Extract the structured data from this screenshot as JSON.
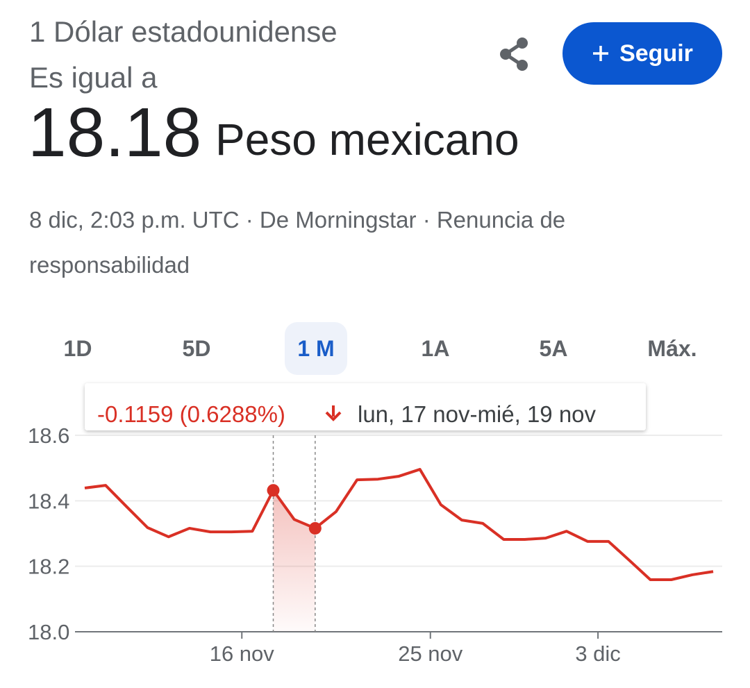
{
  "header": {
    "title": "1 Dólar estadounidense",
    "subtitle": "Es igual a",
    "value": "18.18",
    "currency": "Peso mexicano"
  },
  "follow_button": "Seguir",
  "meta": "8 dic, 2:03 p.m. UTC · De Morningstar · Renuncia de responsabilidad",
  "tabs": {
    "items": [
      "1D",
      "5D",
      "1 M",
      "1A",
      "5A",
      "Máx."
    ],
    "selected": 2
  },
  "chart_data": {
    "type": "line",
    "tooltip": {
      "change": "-0.1159 (0.6288%)",
      "range": "lun, 17 nov-mié, 19 nov"
    },
    "x": [
      0,
      1,
      2,
      3,
      4,
      5,
      6,
      7,
      8,
      9,
      10,
      11,
      12,
      13,
      14,
      15,
      16,
      17,
      18,
      19,
      20,
      21,
      22,
      23,
      24,
      25,
      26,
      27,
      28,
      29,
      30
    ],
    "xlim": [
      0,
      30
    ],
    "xticks": [
      {
        "value": 7.5,
        "label": "16 nov"
      },
      {
        "value": 16.5,
        "label": "25 nov"
      },
      {
        "value": 24.5,
        "label": "3 dic"
      }
    ],
    "series": [
      {
        "color": "#d93025",
        "values": [
          18.439,
          18.447,
          18.382,
          18.318,
          18.29,
          18.316,
          18.305,
          18.305,
          18.307,
          18.432,
          18.343,
          18.316,
          18.367,
          18.464,
          18.466,
          18.475,
          18.496,
          18.388,
          18.341,
          18.331,
          18.282,
          18.282,
          18.286,
          18.307,
          18.276,
          18.276,
          18.218,
          18.159,
          18.159,
          18.174,
          18.184
        ]
      }
    ],
    "ylim": [
      18,
      18.6
    ],
    "yticks": [
      {
        "value": 18,
        "label": "18.0"
      },
      18.2,
      18.4,
      18.6
    ],
    "grid": true,
    "selected_range": [
      9,
      11
    ]
  }
}
